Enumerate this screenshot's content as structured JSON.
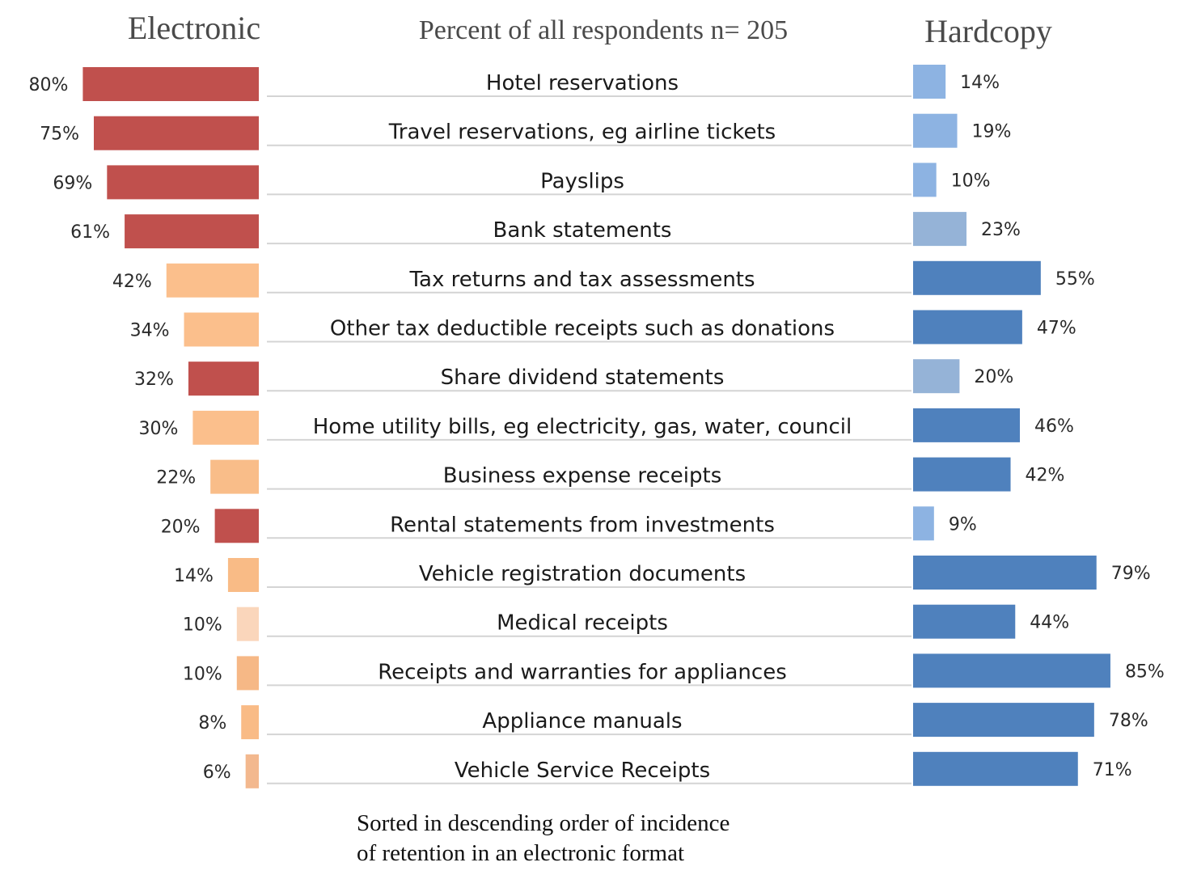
{
  "chart_data": {
    "type": "bar",
    "orientation": "horizontal",
    "layout": "butterfly",
    "title": "Percent of all respondents n= 205",
    "left_header": "Electronic",
    "right_header": "Hardcopy",
    "footnote": [
      "Sorted in descending order of incidence",
      "of retention in an electronic format"
    ],
    "value_unit": "%",
    "xlim": [
      0,
      100
    ],
    "grid": false,
    "legend": "none",
    "categories": [
      "Hotel reservations",
      "Travel reservations, eg airline tickets",
      "Payslips",
      "Bank statements",
      "Tax returns and tax assessments",
      "Other tax deductible receipts such as donations",
      "Share dividend statements",
      "Home utility bills, eg electricity, gas, water, council",
      "Business expense receipts",
      "Rental statements from investments",
      "Vehicle registration documents",
      "Medical receipts",
      "Receipts and warranties for appliances",
      "Appliance manuals",
      "Vehicle Service Receipts"
    ],
    "series": [
      {
        "name": "Electronic",
        "side": "left",
        "values": [
          80,
          75,
          69,
          61,
          42,
          34,
          32,
          30,
          22,
          20,
          14,
          10,
          10,
          8,
          6
        ],
        "colors": [
          "#c0504d",
          "#c0504d",
          "#c0504d",
          "#c0504d",
          "#fbbf8c",
          "#fbbf8c",
          "#c0504d",
          "#fbbf8c",
          "#f9bd89",
          "#c0504d",
          "#f9bb86",
          "#fad6bb",
          "#f6b886",
          "#f9bb86",
          "#f3b88e"
        ]
      },
      {
        "name": "Hardcopy",
        "side": "right",
        "values": [
          14,
          19,
          10,
          23,
          55,
          47,
          20,
          46,
          42,
          9,
          79,
          44,
          85,
          78,
          71
        ],
        "colors": [
          "#8db3e2",
          "#8db3e2",
          "#8db3e2",
          "#95b3d7",
          "#4f81bd",
          "#4f81bd",
          "#95b3d7",
          "#4f81bd",
          "#4f81bd",
          "#8db3e2",
          "#4f81bd",
          "#4f81bd",
          "#4f81bd",
          "#4f81bd",
          "#4f81bd"
        ]
      }
    ]
  }
}
